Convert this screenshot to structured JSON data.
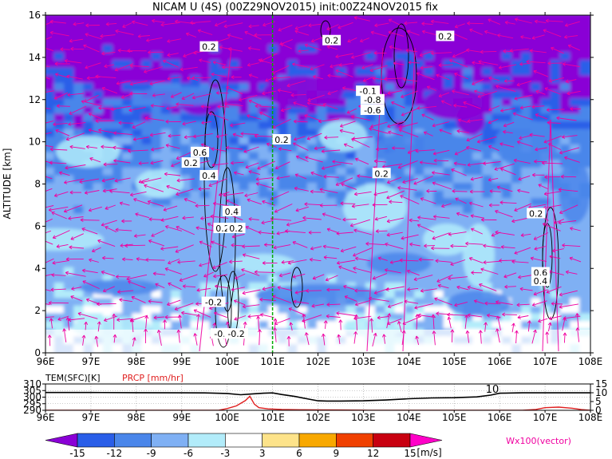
{
  "title": "NICAM U (4S) (00Z29NOV2015) init:00Z24NOV2015 fix",
  "colors": {
    "c_lt_m15": "#8a00d6",
    "c_m15_m12": "#2a5ee8",
    "c_m12_m9": "#4a86ea",
    "c_m9_m6": "#7fb0f4",
    "c_m6_m3": "#b2ecfa",
    "c_m3_3": "#ffffff",
    "c_3_6": "#fde38a",
    "c_6_9": "#f8a800",
    "c_9_12": "#f04000",
    "c_12_15": "#c80010",
    "c_gt_15": "#ff00c8",
    "vector": "#f000a0",
    "marker_line": "#00aa00",
    "precip": "#e02020",
    "contour": "#000000"
  },
  "chart_data": [
    {
      "type": "heatmap",
      "name": "main",
      "ylabel": "ALTITUDE [km]",
      "xlim": [
        96,
        108
      ],
      "ylim": [
        0,
        16
      ],
      "x_ticks": [
        "96E",
        "97E",
        "98E",
        "99E",
        "100E",
        "101E",
        "102E",
        "103E",
        "104E",
        "105E",
        "106E",
        "107E",
        "108E"
      ],
      "y_ticks": [
        "0",
        "2",
        "4",
        "6",
        "8",
        "10",
        "12",
        "14",
        "16"
      ],
      "marker_x": 101,
      "contour_labels": [
        {
          "x": 99.6,
          "y": 14.5,
          "text": "0.2"
        },
        {
          "x": 99.4,
          "y": 9.5,
          "text": "0.6"
        },
        {
          "x": 99.2,
          "y": 9.0,
          "text": "0.2"
        },
        {
          "x": 99.6,
          "y": 8.4,
          "text": "0.4"
        },
        {
          "x": 100.1,
          "y": 6.7,
          "text": "0.4"
        },
        {
          "x": 99.9,
          "y": 5.9,
          "text": "0.2"
        },
        {
          "x": 100.2,
          "y": 5.9,
          "text": "0.2"
        },
        {
          "x": 99.7,
          "y": 2.4,
          "text": "-0.2"
        },
        {
          "x": 99.9,
          "y": 0.9,
          "text": "-0.2"
        },
        {
          "x": 100.2,
          "y": 0.9,
          "text": "-0.2"
        },
        {
          "x": 101.2,
          "y": 10.1,
          "text": "0.2"
        },
        {
          "x": 102.3,
          "y": 14.8,
          "text": "0.2"
        },
        {
          "x": 103.1,
          "y": 12.4,
          "text": "-0.1"
        },
        {
          "x": 103.2,
          "y": 12.0,
          "text": "-0.8"
        },
        {
          "x": 103.2,
          "y": 11.5,
          "text": "-0.6"
        },
        {
          "x": 103.4,
          "y": 8.5,
          "text": "0.2"
        },
        {
          "x": 104.8,
          "y": 15.0,
          "text": "0.2"
        },
        {
          "x": 106.8,
          "y": 6.6,
          "text": "0.2"
        },
        {
          "x": 106.9,
          "y": 3.8,
          "text": "0.6"
        },
        {
          "x": 106.9,
          "y": 3.4,
          "text": "0.4"
        }
      ]
    },
    {
      "type": "line",
      "name": "surface",
      "series": [
        {
          "name": "TEM(SFC)[K]",
          "axis": "left"
        },
        {
          "name": "PRCP [mm/hr]",
          "axis": "right"
        }
      ],
      "left_ticks": [
        "290",
        "295",
        "300",
        "305",
        "310"
      ],
      "right_ticks": [
        "0",
        "5",
        "10",
        "15"
      ],
      "x_ticks": [
        "96E",
        "97E",
        "98E",
        "99E",
        "100E",
        "101E",
        "102E",
        "103E",
        "104E",
        "105E",
        "106E",
        "107E",
        "108E"
      ],
      "xlim": [
        96,
        108
      ],
      "left_range": [
        290,
        310
      ],
      "right_range": [
        0,
        15
      ],
      "temperature": {
        "x": [
          96,
          97,
          98,
          99,
          99.5,
          100,
          100.3,
          100.5,
          100.8,
          101,
          101.2,
          101.5,
          101.8,
          102,
          102.2,
          102.5,
          103,
          103.5,
          104,
          104.5,
          105,
          105.5,
          105.8,
          106,
          106.5,
          107,
          107.5,
          108
        ],
        "y": [
          303.5,
          303.5,
          303.4,
          303.3,
          303.2,
          302.8,
          301.8,
          302.3,
          303.0,
          303.2,
          302.0,
          300.5,
          298.5,
          297.2,
          297.0,
          297.0,
          297.2,
          297.8,
          298.8,
          299.4,
          299.6,
          300.2,
          301.5,
          303.0,
          303.3,
          303.3,
          303.3,
          303.3
        ]
      },
      "precip": {
        "x": [
          96,
          99.8,
          100.0,
          100.2,
          100.4,
          100.5,
          100.6,
          100.7,
          100.9,
          101.2,
          101.6,
          102.0,
          102.5,
          103.0,
          103.1,
          106.5,
          106.8,
          107.0,
          107.3,
          107.6,
          107.8,
          108
        ],
        "y": [
          0,
          0,
          1.0,
          2.5,
          5.5,
          8.0,
          3.5,
          1.5,
          0.8,
          0.5,
          0.3,
          0.25,
          0.2,
          0.1,
          0,
          0,
          0.5,
          1.5,
          1.8,
          1.2,
          0.4,
          0
        ]
      },
      "annotation_text": "10"
    },
    {
      "type": "colorbar",
      "name": "legend",
      "tick_labels": [
        "-15",
        "-12",
        "-9",
        "-6",
        "-3",
        "3",
        "6",
        "9",
        "12",
        "15"
      ],
      "unit": "[m/s]",
      "note": "Wx100(vector)"
    }
  ]
}
